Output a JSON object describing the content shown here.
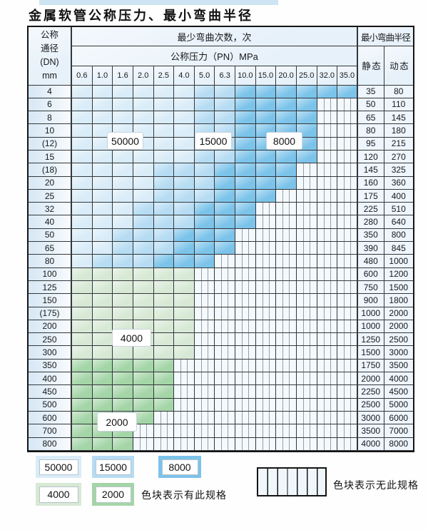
{
  "page": {
    "title": "金属软管公称压力、最小弯曲半径"
  },
  "table": {
    "corner_lines": [
      "公称",
      "通径",
      "(DN)",
      "mm"
    ],
    "bend_cycles_header": "最少弯曲次数，次",
    "pressure_header": "公称压力（PN）MPa",
    "radius_header": "最小弯曲半径",
    "static_header": "静 态",
    "dynamic_header": "动 态",
    "pressure_columns": [
      "0.6",
      "1.0",
      "1.6",
      "2.0",
      "2.5",
      "4.0",
      "5.0",
      "6.3",
      "10.0",
      "15.0",
      "20.0",
      "25.0",
      "32.0",
      "35.0"
    ],
    "cycle_labels": [
      "50000",
      "15000",
      "8000",
      "4000",
      "2000"
    ],
    "rows": [
      {
        "dn": "4",
        "static": "35",
        "dynamic": "80",
        "cycles": [
          {
            "value": "50000",
            "from": 1,
            "to": 6
          },
          {
            "value": "15000",
            "from": 7,
            "to": 8
          },
          {
            "value": "8000",
            "from": 9,
            "to": 14
          }
        ]
      },
      {
        "dn": "6",
        "static": "50",
        "dynamic": "110",
        "cycles": [
          {
            "value": "50000",
            "from": 1,
            "to": 6
          },
          {
            "value": "15000",
            "from": 7,
            "to": 8
          },
          {
            "value": "8000",
            "from": 9,
            "to": 12
          }
        ]
      },
      {
        "dn": "8",
        "static": "65",
        "dynamic": "145",
        "cycles": [
          {
            "value": "50000",
            "from": 1,
            "to": 6
          },
          {
            "value": "15000",
            "from": 7,
            "to": 8
          },
          {
            "value": "8000",
            "from": 9,
            "to": 12
          }
        ]
      },
      {
        "dn": "10",
        "static": "80",
        "dynamic": "180",
        "cycles": [
          {
            "value": "50000",
            "from": 1,
            "to": 6
          },
          {
            "value": "15000",
            "from": 7,
            "to": 8
          },
          {
            "value": "8000",
            "from": 9,
            "to": 12
          }
        ]
      },
      {
        "dn": "(12)",
        "static": "95",
        "dynamic": "215",
        "cycles": [
          {
            "value": "50000",
            "from": 1,
            "to": 6
          },
          {
            "value": "15000",
            "from": 7,
            "to": 8
          },
          {
            "value": "8000",
            "from": 9,
            "to": 12
          }
        ]
      },
      {
        "dn": "15",
        "static": "120",
        "dynamic": "270",
        "cycles": [
          {
            "value": "50000",
            "from": 1,
            "to": 6
          },
          {
            "value": "15000",
            "from": 7,
            "to": 8
          },
          {
            "value": "8000",
            "from": 9,
            "to": 12
          }
        ]
      },
      {
        "dn": "(18)",
        "static": "145",
        "dynamic": "325",
        "cycles": [
          {
            "value": "50000",
            "from": 1,
            "to": 4
          },
          {
            "value": "15000",
            "from": 5,
            "to": 7
          },
          {
            "value": "8000",
            "from": 8,
            "to": 11
          }
        ]
      },
      {
        "dn": "20",
        "static": "160",
        "dynamic": "360",
        "cycles": [
          {
            "value": "50000",
            "from": 1,
            "to": 4
          },
          {
            "value": "15000",
            "from": 5,
            "to": 7
          },
          {
            "value": "8000",
            "from": 8,
            "to": 11
          }
        ]
      },
      {
        "dn": "25",
        "static": "175",
        "dynamic": "400",
        "cycles": [
          {
            "value": "50000",
            "from": 1,
            "to": 4
          },
          {
            "value": "15000",
            "from": 5,
            "to": 7
          },
          {
            "value": "8000",
            "from": 8,
            "to": 10
          }
        ]
      },
      {
        "dn": "32",
        "static": "225",
        "dynamic": "510",
        "cycles": [
          {
            "value": "50000",
            "from": 1,
            "to": 3
          },
          {
            "value": "15000",
            "from": 4,
            "to": 6
          },
          {
            "value": "8000",
            "from": 7,
            "to": 9
          }
        ]
      },
      {
        "dn": "40",
        "static": "280",
        "dynamic": "640",
        "cycles": [
          {
            "value": "50000",
            "from": 1,
            "to": 3
          },
          {
            "value": "15000",
            "from": 4,
            "to": 6
          },
          {
            "value": "8000",
            "from": 7,
            "to": 9
          }
        ]
      },
      {
        "dn": "50",
        "static": "350",
        "dynamic": "800",
        "cycles": [
          {
            "value": "50000",
            "from": 1,
            "to": 2
          },
          {
            "value": "15000",
            "from": 3,
            "to": 5
          },
          {
            "value": "8000",
            "from": 6,
            "to": 8
          }
        ]
      },
      {
        "dn": "65",
        "static": "390",
        "dynamic": "845",
        "cycles": [
          {
            "value": "50000",
            "from": 1,
            "to": 2
          },
          {
            "value": "15000",
            "from": 3,
            "to": 5
          },
          {
            "value": "8000",
            "from": 6,
            "to": 8
          }
        ]
      },
      {
        "dn": "80",
        "static": "480",
        "dynamic": "1000",
        "cycles": [
          {
            "value": "50000",
            "from": 1,
            "to": 1
          },
          {
            "value": "15000",
            "from": 2,
            "to": 4
          },
          {
            "value": "8000",
            "from": 5,
            "to": 7
          }
        ]
      },
      {
        "dn": "100",
        "static": "600",
        "dynamic": "1200",
        "cycles": [
          {
            "value": "4000",
            "from": 1,
            "to": 6
          }
        ]
      },
      {
        "dn": "125",
        "static": "750",
        "dynamic": "1500",
        "cycles": [
          {
            "value": "4000",
            "from": 1,
            "to": 6
          }
        ]
      },
      {
        "dn": "150",
        "static": "900",
        "dynamic": "1800",
        "cycles": [
          {
            "value": "4000",
            "from": 1,
            "to": 6
          }
        ]
      },
      {
        "dn": "(175)",
        "static": "1000",
        "dynamic": "2000",
        "cycles": [
          {
            "value": "4000",
            "from": 1,
            "to": 6
          }
        ]
      },
      {
        "dn": "200",
        "static": "1000",
        "dynamic": "2000",
        "cycles": [
          {
            "value": "4000",
            "from": 1,
            "to": 6
          }
        ]
      },
      {
        "dn": "250",
        "static": "1250",
        "dynamic": "2500",
        "cycles": [
          {
            "value": "4000",
            "from": 1,
            "to": 6
          }
        ]
      },
      {
        "dn": "300",
        "static": "1500",
        "dynamic": "3000",
        "cycles": [
          {
            "value": "4000",
            "from": 1,
            "to": 6
          }
        ]
      },
      {
        "dn": "350",
        "static": "1750",
        "dynamic": "3500",
        "cycles": [
          {
            "value": "2000",
            "from": 1,
            "to": 5
          }
        ]
      },
      {
        "dn": "400",
        "static": "2000",
        "dynamic": "4000",
        "cycles": [
          {
            "value": "2000",
            "from": 1,
            "to": 5
          }
        ]
      },
      {
        "dn": "450",
        "static": "2250",
        "dynamic": "4500",
        "cycles": [
          {
            "value": "2000",
            "from": 1,
            "to": 5
          }
        ]
      },
      {
        "dn": "500",
        "static": "2500",
        "dynamic": "5000",
        "cycles": [
          {
            "value": "2000",
            "from": 1,
            "to": 5
          }
        ]
      },
      {
        "dn": "600",
        "static": "3000",
        "dynamic": "6000",
        "cycles": [
          {
            "value": "2000",
            "from": 1,
            "to": 4
          }
        ]
      },
      {
        "dn": "700",
        "static": "3500",
        "dynamic": "7000",
        "cycles": [
          {
            "value": "2000",
            "from": 1,
            "to": 3
          }
        ]
      },
      {
        "dn": "800",
        "static": "4000",
        "dynamic": "8000",
        "cycles": [
          {
            "value": "2000",
            "from": 1,
            "to": 3
          }
        ]
      }
    ]
  },
  "legend": {
    "items": [
      {
        "label": "50000",
        "color": "#d9ecf8"
      },
      {
        "label": "15000",
        "color": "#b6dcf3"
      },
      {
        "label": "8000",
        "color": "#7cc3ea"
      },
      {
        "label": "4000",
        "color": "#d7e9d5"
      },
      {
        "label": "2000",
        "color": "#a4d5a7"
      }
    ],
    "has_spec_text": "色块表示有此规格",
    "no_spec_text": "色块表示无此规格"
  }
}
